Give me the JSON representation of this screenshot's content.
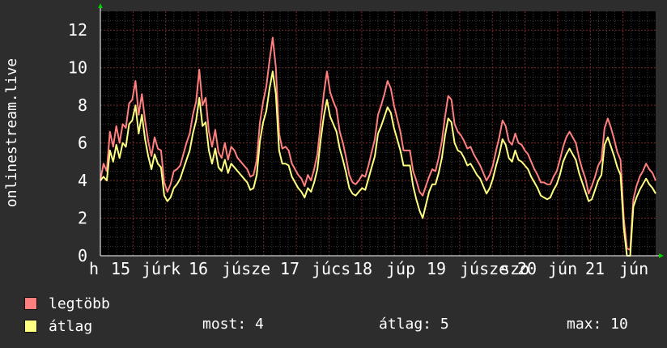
{
  "chart_data": {
    "type": "line",
    "ylabel": "onlinestream.live",
    "ylim": [
      0,
      13
    ],
    "yticks": [
      0,
      2,
      4,
      6,
      8,
      10,
      12
    ],
    "xticks": [
      "h",
      "15",
      "júrk",
      "16",
      "júsze",
      "17",
      "júcs",
      "18",
      "júp",
      "19",
      "júsze",
      "szo",
      "20",
      "jún",
      "21",
      "jún"
    ],
    "series": [
      {
        "name": "legtöbb",
        "color": "#ff7f7f",
        "values": [
          4.0,
          4.9,
          4.5,
          6.6,
          5.8,
          6.9,
          6.0,
          7.0,
          6.8,
          8.1,
          8.3,
          9.3,
          7.5,
          8.6,
          7.2,
          6.1,
          5.3,
          6.3,
          5.7,
          5.6,
          3.9,
          3.4,
          3.8,
          4.5,
          4.6,
          4.8,
          5.4,
          6.0,
          6.5,
          7.5,
          8.2,
          9.9,
          8.0,
          8.4,
          6.6,
          5.8,
          6.7,
          5.5,
          5.2,
          6.0,
          5.1,
          5.8,
          5.6,
          5.2,
          5.0,
          4.8,
          4.6,
          4.2,
          4.3,
          5.1,
          7.1,
          8.2,
          9.0,
          10.4,
          11.6,
          10.0,
          6.5,
          5.7,
          5.8,
          5.6,
          4.9,
          4.6,
          4.3,
          4.1,
          3.7,
          4.3,
          4.0,
          4.6,
          5.4,
          7.0,
          8.6,
          9.8,
          8.7,
          8.2,
          7.8,
          6.6,
          6.0,
          5.2,
          4.3,
          3.9,
          3.8,
          4.0,
          4.3,
          4.2,
          4.8,
          5.5,
          6.2,
          7.5,
          8.0,
          8.6,
          9.3,
          8.9,
          8.0,
          7.3,
          6.6,
          5.6,
          5.6,
          5.6,
          4.5,
          4.0,
          3.4,
          3.2,
          3.7,
          4.2,
          4.6,
          4.5,
          5.2,
          6.1,
          7.4,
          8.5,
          8.3,
          7.0,
          6.6,
          6.4,
          6.1,
          5.7,
          5.8,
          5.4,
          5.1,
          4.8,
          4.4,
          4.0,
          4.3,
          4.8,
          5.6,
          6.3,
          7.2,
          6.9,
          6.1,
          5.9,
          6.5,
          6.0,
          5.9,
          5.6,
          5.4,
          5.0,
          4.6,
          4.3,
          3.9,
          3.9,
          3.8,
          3.8,
          4.2,
          4.5,
          5.1,
          5.8,
          6.3,
          6.6,
          6.3,
          6.0,
          5.2,
          4.6,
          4.1,
          3.3,
          3.7,
          4.2,
          4.8,
          5.1,
          6.8,
          7.3,
          6.8,
          6.2,
          5.5,
          5.1,
          2.0,
          0.4,
          0.3,
          3.0,
          3.7,
          4.2,
          4.5,
          4.9,
          4.6,
          4.4,
          4.0
        ],
        "note": ""
      },
      {
        "name": "átlag",
        "color": "#ffff80",
        "values": [
          4.0,
          4.2,
          4.0,
          5.6,
          5.0,
          5.9,
          5.2,
          6.0,
          5.8,
          7.0,
          7.2,
          8.0,
          6.5,
          7.5,
          6.2,
          5.3,
          4.6,
          5.4,
          4.9,
          4.7,
          3.2,
          2.9,
          3.1,
          3.6,
          3.8,
          4.1,
          4.6,
          5.1,
          5.6,
          6.5,
          7.2,
          8.4,
          6.9,
          7.1,
          5.6,
          4.9,
          5.7,
          4.7,
          4.5,
          5.1,
          4.4,
          4.9,
          4.7,
          4.5,
          4.3,
          4.1,
          3.9,
          3.5,
          3.6,
          4.3,
          6.1,
          7.1,
          7.7,
          8.9,
          9.8,
          8.6,
          5.6,
          4.9,
          4.9,
          4.8,
          4.2,
          3.9,
          3.6,
          3.4,
          3.1,
          3.6,
          3.4,
          3.9,
          4.6,
          6.1,
          7.4,
          8.3,
          7.4,
          7.0,
          6.6,
          5.7,
          5.1,
          4.4,
          3.6,
          3.3,
          3.2,
          3.4,
          3.6,
          3.5,
          4.1,
          4.7,
          5.3,
          6.5,
          6.9,
          7.4,
          7.9,
          7.6,
          6.8,
          6.2,
          5.6,
          4.8,
          4.8,
          4.8,
          3.7,
          3.0,
          2.4,
          2.0,
          2.7,
          3.4,
          3.8,
          3.8,
          4.4,
          5.2,
          6.4,
          7.3,
          7.1,
          6.0,
          5.6,
          5.5,
          5.2,
          4.8,
          4.9,
          4.6,
          4.3,
          4.1,
          3.7,
          3.3,
          3.6,
          4.1,
          4.8,
          5.4,
          6.2,
          5.9,
          5.2,
          5.0,
          5.6,
          5.1,
          5.0,
          4.8,
          4.6,
          4.2,
          3.9,
          3.6,
          3.2,
          3.1,
          3.0,
          3.1,
          3.5,
          3.8,
          4.3,
          5.0,
          5.4,
          5.7,
          5.4,
          5.1,
          4.4,
          3.9,
          3.4,
          2.9,
          3.0,
          3.5,
          4.0,
          4.3,
          5.9,
          6.3,
          5.8,
          5.3,
          4.7,
          4.3,
          1.5,
          0.0,
          0.0,
          2.6,
          3.1,
          3.5,
          3.8,
          4.1,
          3.8,
          3.6,
          3.3
        ],
        "note": ""
      }
    ]
  },
  "legend": {
    "max_label": "legtöbb",
    "avg_label": "átlag"
  },
  "stats": {
    "now": "most: 4",
    "avg": "átlag: 5",
    "max": "max: 10"
  }
}
